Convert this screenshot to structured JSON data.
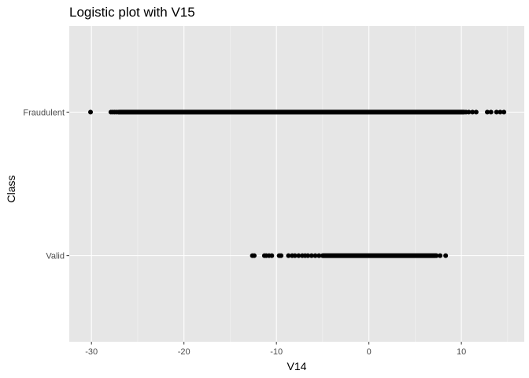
{
  "chart_data": {
    "type": "scatter",
    "title": "Logistic plot with V15",
    "xlabel": "V14",
    "ylabel": "Class",
    "xlim": [
      -32.4,
      16.8
    ],
    "x_ticks": [
      -30,
      -20,
      -10,
      0,
      10
    ],
    "x_tick_labels": [
      "-30",
      "-20",
      "-10",
      "0",
      "10"
    ],
    "categories": [
      "Valid",
      "Fraudulent"
    ],
    "grid": true,
    "legend": "none",
    "point_color": "#000000",
    "panel_background": "#e6e6e6",
    "grid_color": "#ffffff",
    "series": [
      {
        "category": "Fraudulent",
        "dense_range": [
          -27.0,
          10.3
        ],
        "x": [
          -30.1,
          -27.9,
          -27.7,
          -27.5,
          -27.3,
          -27.1,
          10.5,
          10.8,
          11.2,
          11.6,
          12.8,
          13.2,
          13.8,
          14.2,
          14.6
        ]
      },
      {
        "category": "Valid",
        "dense_range": [
          -5.0,
          7.2
        ],
        "x": [
          -12.6,
          -12.4,
          -11.3,
          -11.1,
          -10.8,
          -10.5,
          -9.7,
          -9.5,
          -8.7,
          -8.3,
          -8.0,
          -7.6,
          -7.2,
          -6.9,
          -6.6,
          -6.2,
          -5.8,
          -5.4,
          7.3,
          7.7,
          8.3
        ]
      }
    ]
  }
}
